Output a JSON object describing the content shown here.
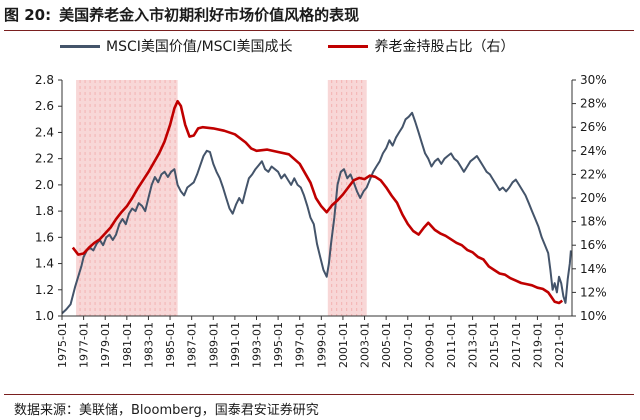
{
  "figure": {
    "number": "图 20:",
    "title": "美国养老金入市初期利好市场价值风格的表现",
    "source": "数据来源：美联储，Bloomberg，国泰君安证券研究"
  },
  "colors": {
    "series_left": "#44546a",
    "series_right": "#c00000",
    "shade": "#f6c9c9",
    "title_rule": "#7a1f1f"
  },
  "chart_data": {
    "type": "line",
    "x_tick_labels": [
      "1975-01",
      "1977-01",
      "1979-01",
      "1981-01",
      "1983-01",
      "1985-01",
      "1987-01",
      "1989-01",
      "1991-01",
      "1993-01",
      "1995-01",
      "1997-01",
      "1999-01",
      "2001-01",
      "2003-01",
      "2005-01",
      "2007-01",
      "2009-01",
      "2011-01",
      "2013-01",
      "2015-01",
      "2017-01",
      "2019-01",
      "2021-01"
    ],
    "xlim": [
      1975.0,
      2022.2
    ],
    "y_left": {
      "ylim": [
        1.0,
        2.8
      ],
      "ticks": [
        "1.0",
        "1.2",
        "1.4",
        "1.6",
        "1.8",
        "2.0",
        "2.2",
        "2.4",
        "2.6",
        "2.8"
      ]
    },
    "y_right": {
      "ylim": [
        10,
        30
      ],
      "ticks": [
        "10%",
        "12%",
        "14%",
        "16%",
        "18%",
        "20%",
        "22%",
        "24%",
        "26%",
        "28%",
        "30%"
      ]
    },
    "shaded_periods": [
      [
        1976.3,
        1985.7
      ],
      [
        1999.6,
        2003.2
      ]
    ],
    "series": [
      {
        "name": "MSCI美国价值/MSCI美国成长",
        "axis": "left",
        "points": [
          [
            1975.0,
            1.02
          ],
          [
            1975.4,
            1.05
          ],
          [
            1975.8,
            1.09
          ],
          [
            1976.2,
            1.22
          ],
          [
            1976.5,
            1.3
          ],
          [
            1976.8,
            1.38
          ],
          [
            1977.0,
            1.45
          ],
          [
            1977.3,
            1.5
          ],
          [
            1977.6,
            1.52
          ],
          [
            1977.9,
            1.5
          ],
          [
            1978.2,
            1.55
          ],
          [
            1978.5,
            1.58
          ],
          [
            1978.8,
            1.54
          ],
          [
            1979.1,
            1.6
          ],
          [
            1979.4,
            1.62
          ],
          [
            1979.7,
            1.58
          ],
          [
            1980.0,
            1.62
          ],
          [
            1980.3,
            1.7
          ],
          [
            1980.6,
            1.74
          ],
          [
            1980.9,
            1.7
          ],
          [
            1981.2,
            1.78
          ],
          [
            1981.5,
            1.82
          ],
          [
            1981.8,
            1.8
          ],
          [
            1982.1,
            1.86
          ],
          [
            1982.4,
            1.84
          ],
          [
            1982.7,
            1.8
          ],
          [
            1983.0,
            1.9
          ],
          [
            1983.3,
            2.0
          ],
          [
            1983.6,
            2.06
          ],
          [
            1983.9,
            2.02
          ],
          [
            1984.2,
            2.08
          ],
          [
            1984.5,
            2.1
          ],
          [
            1984.8,
            2.06
          ],
          [
            1985.1,
            2.1
          ],
          [
            1985.4,
            2.12
          ],
          [
            1985.7,
            2.0
          ],
          [
            1986.0,
            1.95
          ],
          [
            1986.3,
            1.92
          ],
          [
            1986.6,
            1.98
          ],
          [
            1986.9,
            2.0
          ],
          [
            1987.2,
            2.02
          ],
          [
            1987.5,
            2.08
          ],
          [
            1987.8,
            2.15
          ],
          [
            1988.1,
            2.22
          ],
          [
            1988.4,
            2.26
          ],
          [
            1988.7,
            2.25
          ],
          [
            1989.0,
            2.16
          ],
          [
            1989.3,
            2.1
          ],
          [
            1989.6,
            2.05
          ],
          [
            1989.9,
            1.98
          ],
          [
            1990.2,
            1.9
          ],
          [
            1990.5,
            1.82
          ],
          [
            1990.8,
            1.78
          ],
          [
            1991.1,
            1.85
          ],
          [
            1991.4,
            1.9
          ],
          [
            1991.7,
            1.86
          ],
          [
            1992.0,
            1.96
          ],
          [
            1992.3,
            2.05
          ],
          [
            1992.6,
            2.08
          ],
          [
            1992.9,
            2.12
          ],
          [
            1993.2,
            2.15
          ],
          [
            1993.5,
            2.18
          ],
          [
            1993.8,
            2.12
          ],
          [
            1994.1,
            2.1
          ],
          [
            1994.4,
            2.14
          ],
          [
            1994.7,
            2.12
          ],
          [
            1995.0,
            2.1
          ],
          [
            1995.3,
            2.05
          ],
          [
            1995.6,
            2.08
          ],
          [
            1995.9,
            2.04
          ],
          [
            1996.2,
            2.0
          ],
          [
            1996.5,
            2.05
          ],
          [
            1996.8,
            2.0
          ],
          [
            1997.1,
            1.98
          ],
          [
            1997.4,
            1.92
          ],
          [
            1997.7,
            1.84
          ],
          [
            1998.0,
            1.75
          ],
          [
            1998.3,
            1.7
          ],
          [
            1998.6,
            1.55
          ],
          [
            1998.9,
            1.45
          ],
          [
            1999.2,
            1.35
          ],
          [
            1999.5,
            1.3
          ],
          [
            1999.7,
            1.4
          ],
          [
            1999.9,
            1.55
          ],
          [
            2000.2,
            1.75
          ],
          [
            2000.5,
            2.0
          ],
          [
            2000.8,
            2.1
          ],
          [
            2001.1,
            2.12
          ],
          [
            2001.4,
            2.05
          ],
          [
            2001.7,
            2.08
          ],
          [
            2002.0,
            2.02
          ],
          [
            2002.3,
            1.95
          ],
          [
            2002.6,
            1.9
          ],
          [
            2002.9,
            1.95
          ],
          [
            2003.2,
            1.98
          ],
          [
            2003.5,
            2.04
          ],
          [
            2003.8,
            2.1
          ],
          [
            2004.1,
            2.14
          ],
          [
            2004.4,
            2.18
          ],
          [
            2004.7,
            2.24
          ],
          [
            2005.0,
            2.28
          ],
          [
            2005.3,
            2.34
          ],
          [
            2005.6,
            2.3
          ],
          [
            2005.9,
            2.36
          ],
          [
            2006.2,
            2.4
          ],
          [
            2006.5,
            2.44
          ],
          [
            2006.8,
            2.5
          ],
          [
            2007.1,
            2.52
          ],
          [
            2007.4,
            2.55
          ],
          [
            2007.7,
            2.48
          ],
          [
            2008.0,
            2.4
          ],
          [
            2008.3,
            2.32
          ],
          [
            2008.6,
            2.24
          ],
          [
            2008.9,
            2.2
          ],
          [
            2009.2,
            2.14
          ],
          [
            2009.5,
            2.18
          ],
          [
            2009.8,
            2.2
          ],
          [
            2010.1,
            2.16
          ],
          [
            2010.4,
            2.2
          ],
          [
            2010.7,
            2.22
          ],
          [
            2011.0,
            2.24
          ],
          [
            2011.3,
            2.2
          ],
          [
            2011.6,
            2.18
          ],
          [
            2011.9,
            2.14
          ],
          [
            2012.2,
            2.1
          ],
          [
            2012.5,
            2.14
          ],
          [
            2012.8,
            2.18
          ],
          [
            2013.1,
            2.2
          ],
          [
            2013.4,
            2.22
          ],
          [
            2013.7,
            2.18
          ],
          [
            2014.0,
            2.14
          ],
          [
            2014.3,
            2.1
          ],
          [
            2014.6,
            2.08
          ],
          [
            2014.9,
            2.04
          ],
          [
            2015.2,
            2.0
          ],
          [
            2015.5,
            1.96
          ],
          [
            2015.8,
            1.98
          ],
          [
            2016.1,
            1.95
          ],
          [
            2016.4,
            1.98
          ],
          [
            2016.7,
            2.02
          ],
          [
            2017.0,
            2.04
          ],
          [
            2017.3,
            2.0
          ],
          [
            2017.6,
            1.96
          ],
          [
            2017.9,
            1.92
          ],
          [
            2018.2,
            1.86
          ],
          [
            2018.5,
            1.8
          ],
          [
            2018.8,
            1.74
          ],
          [
            2019.1,
            1.68
          ],
          [
            2019.4,
            1.6
          ],
          [
            2019.7,
            1.54
          ],
          [
            2020.0,
            1.48
          ],
          [
            2020.2,
            1.35
          ],
          [
            2020.4,
            1.2
          ],
          [
            2020.6,
            1.25
          ],
          [
            2020.8,
            1.18
          ],
          [
            2021.0,
            1.3
          ],
          [
            2021.2,
            1.25
          ],
          [
            2021.4,
            1.15
          ],
          [
            2021.6,
            1.1
          ],
          [
            2021.8,
            1.28
          ],
          [
            2022.0,
            1.4
          ],
          [
            2022.1,
            1.5
          ]
        ]
      },
      {
        "name": "养老金持股占比（右）",
        "axis": "right",
        "points": [
          [
            1976.0,
            15.8
          ],
          [
            1976.5,
            15.2
          ],
          [
            1977.0,
            15.3
          ],
          [
            1977.5,
            15.8
          ],
          [
            1978.0,
            16.2
          ],
          [
            1978.5,
            16.5
          ],
          [
            1979.0,
            17.0
          ],
          [
            1979.5,
            17.5
          ],
          [
            1980.0,
            18.2
          ],
          [
            1980.5,
            18.8
          ],
          [
            1981.0,
            19.3
          ],
          [
            1981.5,
            20.0
          ],
          [
            1982.0,
            20.8
          ],
          [
            1982.5,
            21.5
          ],
          [
            1983.0,
            22.2
          ],
          [
            1983.5,
            23.0
          ],
          [
            1984.0,
            23.8
          ],
          [
            1984.5,
            24.8
          ],
          [
            1985.0,
            26.2
          ],
          [
            1985.4,
            27.6
          ],
          [
            1985.7,
            28.2
          ],
          [
            1986.0,
            27.8
          ],
          [
            1986.4,
            26.2
          ],
          [
            1986.8,
            25.2
          ],
          [
            1987.2,
            25.3
          ],
          [
            1987.6,
            25.9
          ],
          [
            1988.0,
            26.0
          ],
          [
            1989.0,
            25.9
          ],
          [
            1990.0,
            25.7
          ],
          [
            1991.0,
            25.4
          ],
          [
            1992.0,
            24.7
          ],
          [
            1992.5,
            24.2
          ],
          [
            1993.0,
            24.0
          ],
          [
            1994.0,
            24.1
          ],
          [
            1995.0,
            23.9
          ],
          [
            1996.0,
            23.7
          ],
          [
            1997.0,
            22.9
          ],
          [
            1998.0,
            21.3
          ],
          [
            1998.5,
            20.0
          ],
          [
            1999.0,
            19.3
          ],
          [
            1999.5,
            18.8
          ],
          [
            2000.0,
            19.4
          ],
          [
            2000.5,
            19.8
          ],
          [
            2001.0,
            20.3
          ],
          [
            2001.5,
            20.9
          ],
          [
            2002.0,
            21.5
          ],
          [
            2002.5,
            21.7
          ],
          [
            2003.0,
            21.6
          ],
          [
            2003.5,
            21.9
          ],
          [
            2004.0,
            21.8
          ],
          [
            2004.5,
            21.5
          ],
          [
            2005.0,
            20.9
          ],
          [
            2005.5,
            20.2
          ],
          [
            2006.0,
            19.6
          ],
          [
            2006.5,
            18.6
          ],
          [
            2007.0,
            17.8
          ],
          [
            2007.5,
            17.2
          ],
          [
            2008.0,
            16.9
          ],
          [
            2008.5,
            17.5
          ],
          [
            2008.9,
            17.9
          ],
          [
            2009.5,
            17.3
          ],
          [
            2010.0,
            17.0
          ],
          [
            2010.5,
            16.8
          ],
          [
            2011.0,
            16.5
          ],
          [
            2011.5,
            16.2
          ],
          [
            2012.0,
            16.0
          ],
          [
            2012.5,
            15.6
          ],
          [
            2013.0,
            15.4
          ],
          [
            2013.5,
            15.0
          ],
          [
            2014.0,
            14.8
          ],
          [
            2014.5,
            14.2
          ],
          [
            2015.0,
            13.9
          ],
          [
            2015.5,
            13.6
          ],
          [
            2016.0,
            13.5
          ],
          [
            2016.5,
            13.2
          ],
          [
            2017.0,
            13.0
          ],
          [
            2017.5,
            12.8
          ],
          [
            2018.0,
            12.7
          ],
          [
            2018.5,
            12.6
          ],
          [
            2019.0,
            12.4
          ],
          [
            2019.5,
            12.3
          ],
          [
            2020.0,
            12.0
          ],
          [
            2020.3,
            11.6
          ],
          [
            2020.6,
            11.2
          ],
          [
            2021.0,
            11.1
          ],
          [
            2021.3,
            11.3
          ]
        ]
      }
    ],
    "grid": false,
    "legend_position": "top"
  }
}
